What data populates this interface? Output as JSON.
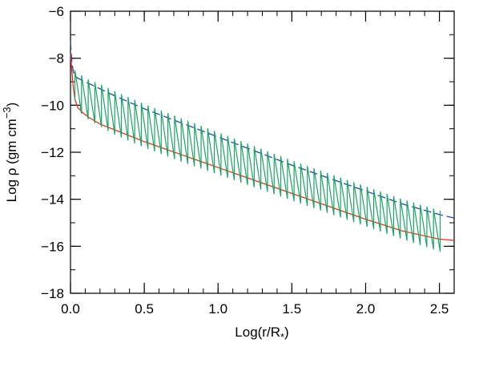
{
  "chart_data": {
    "type": "line",
    "title": "",
    "xlabel": "Log(r/R",
    "xlabel_sub": "*",
    "xlabel_end": ")",
    "ylabel": "Log ρ (gm cm",
    "ylabel_sup": "−3",
    "ylabel_end": ")",
    "xlim": [
      0.0,
      2.6
    ],
    "ylim": [
      -18,
      -6
    ],
    "x_ticks": [
      {
        "value": 0.0,
        "label": "0.0"
      },
      {
        "value": 0.5,
        "label": "0.5"
      },
      {
        "value": 1.0,
        "label": "1.0"
      },
      {
        "value": 1.5,
        "label": "1.5"
      },
      {
        "value": 2.0,
        "label": "2.0"
      },
      {
        "value": 2.5,
        "label": "2.5"
      }
    ],
    "y_ticks": [
      {
        "value": -6,
        "label": "−6"
      },
      {
        "value": -8,
        "label": "−8"
      },
      {
        "value": -10,
        "label": "−10"
      },
      {
        "value": -12,
        "label": "−12"
      },
      {
        "value": -14,
        "label": "−14"
      },
      {
        "value": -16,
        "label": "−16"
      },
      {
        "value": -18,
        "label": "−18"
      }
    ],
    "x_minor_step": 0.1,
    "y_minor_step": 1,
    "grid": false,
    "legend": "none",
    "series": [
      {
        "color": "#e8321e",
        "style": "solid",
        "x": [
          0.0,
          0.01,
          0.02,
          0.03,
          0.05,
          0.08,
          0.12,
          0.2,
          0.3,
          0.5,
          0.75,
          1.0,
          1.25,
          1.5,
          1.75,
          2.0,
          2.25,
          2.5,
          2.6
        ],
        "y": [
          -7.8,
          -8.6,
          -9.3,
          -9.75,
          -10.1,
          -10.3,
          -10.5,
          -10.8,
          -11.05,
          -11.55,
          -12.1,
          -12.65,
          -13.2,
          -13.75,
          -14.3,
          -14.85,
          -15.35,
          -15.7,
          -15.75
        ]
      },
      {
        "color": "#2a3fb0",
        "style": "dashed",
        "x": [
          0.0,
          0.01,
          0.02,
          0.03,
          0.05,
          0.1,
          0.2,
          0.3,
          0.5,
          0.75,
          1.0,
          1.25,
          1.5,
          1.75,
          2.0,
          2.25,
          2.5,
          2.6
        ],
        "y": [
          -7.3,
          -8.2,
          -8.6,
          -8.75,
          -8.85,
          -9.0,
          -9.3,
          -9.6,
          -10.15,
          -10.75,
          -11.35,
          -11.95,
          -12.55,
          -13.1,
          -13.65,
          -14.2,
          -14.65,
          -14.8
        ]
      },
      {
        "color": "#19a463",
        "style": "sawtooth",
        "x_start": 0.03,
        "x_end": 2.54,
        "spacing": 0.045,
        "upper_x": [
          0.03,
          0.1,
          0.2,
          0.3,
          0.5,
          0.75,
          1.0,
          1.25,
          1.5,
          1.75,
          2.0,
          2.25,
          2.54
        ],
        "upper_y": [
          -8.5,
          -8.85,
          -9.1,
          -9.4,
          -9.95,
          -10.55,
          -11.15,
          -11.75,
          -12.35,
          -12.9,
          -13.45,
          -14.0,
          -14.55
        ],
        "lower_x": [
          0.03,
          0.05,
          0.08,
          0.12,
          0.2,
          0.3,
          0.5,
          0.75,
          1.0,
          1.25,
          1.5,
          1.75,
          2.0,
          2.25,
          2.54
        ],
        "lower_y": [
          -9.8,
          -10.15,
          -10.4,
          -10.6,
          -10.9,
          -11.25,
          -11.8,
          -12.4,
          -12.95,
          -13.5,
          -14.05,
          -14.6,
          -15.15,
          -15.7,
          -16.3
        ]
      }
    ]
  }
}
